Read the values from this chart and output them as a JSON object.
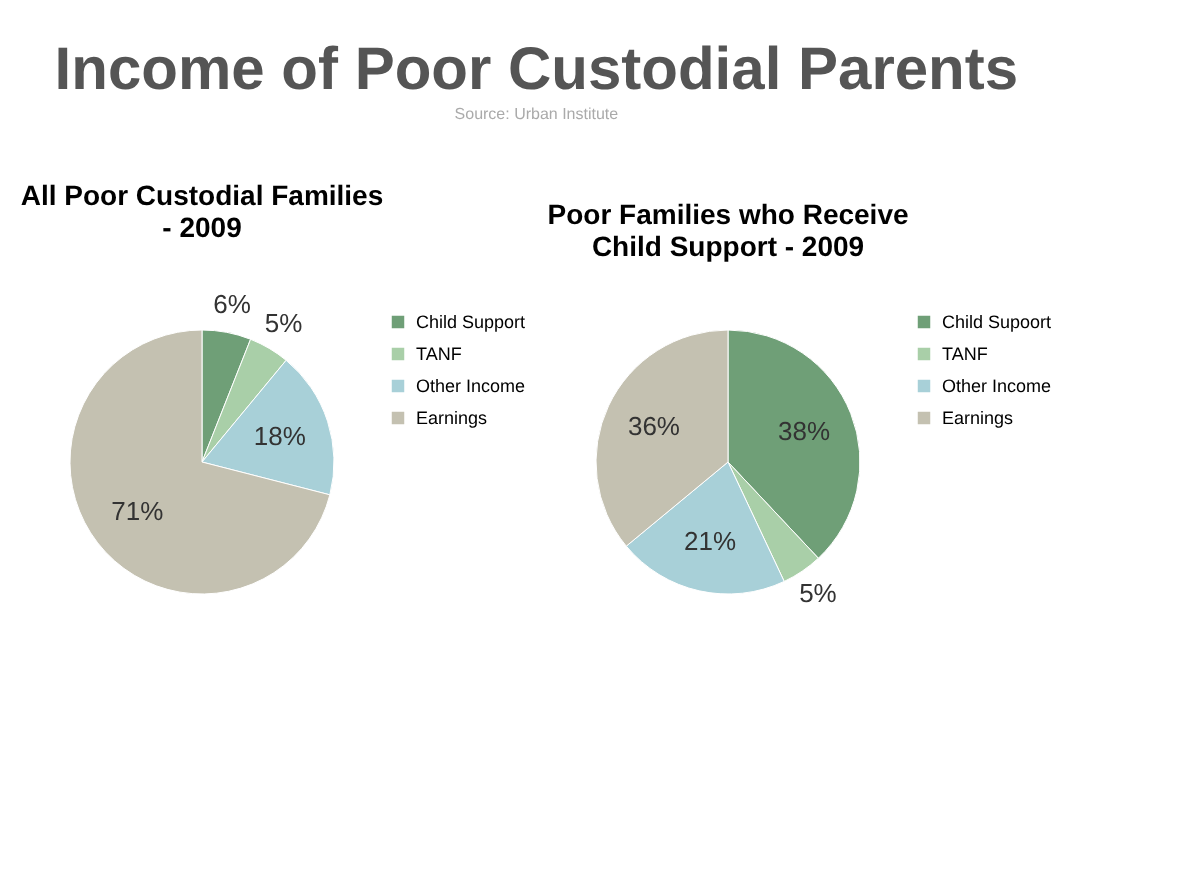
{
  "chart_data": [
    {
      "type": "pie",
      "title": "All Poor Custodial Families - 2009",
      "annotations": [
        "Income of Poor Custodial Parents",
        "Source: Urban Institute"
      ],
      "categories": [
        "Child Support",
        "TANF",
        "Other Income",
        "Earnings"
      ],
      "values": [
        6,
        5,
        18,
        71
      ],
      "value_labels": [
        "6%",
        "5%",
        "18%",
        "71%"
      ],
      "colors": [
        "#6f9f77",
        "#a9cfa8",
        "#a8d0d8",
        "#c4c1b1"
      ],
      "legend": "right"
    },
    {
      "type": "pie",
      "title": "Poor Families who Receive Child Support - 2009",
      "categories": [
        "Child Supoort",
        "TANF",
        "Other Income",
        "Earnings"
      ],
      "values": [
        38,
        5,
        21,
        36
      ],
      "value_labels": [
        "38%",
        "5%",
        "21%",
        "36%"
      ],
      "colors": [
        "#6f9f77",
        "#a9cfa8",
        "#a8d0d8",
        "#c4c1b1"
      ],
      "legend": "right"
    }
  ]
}
